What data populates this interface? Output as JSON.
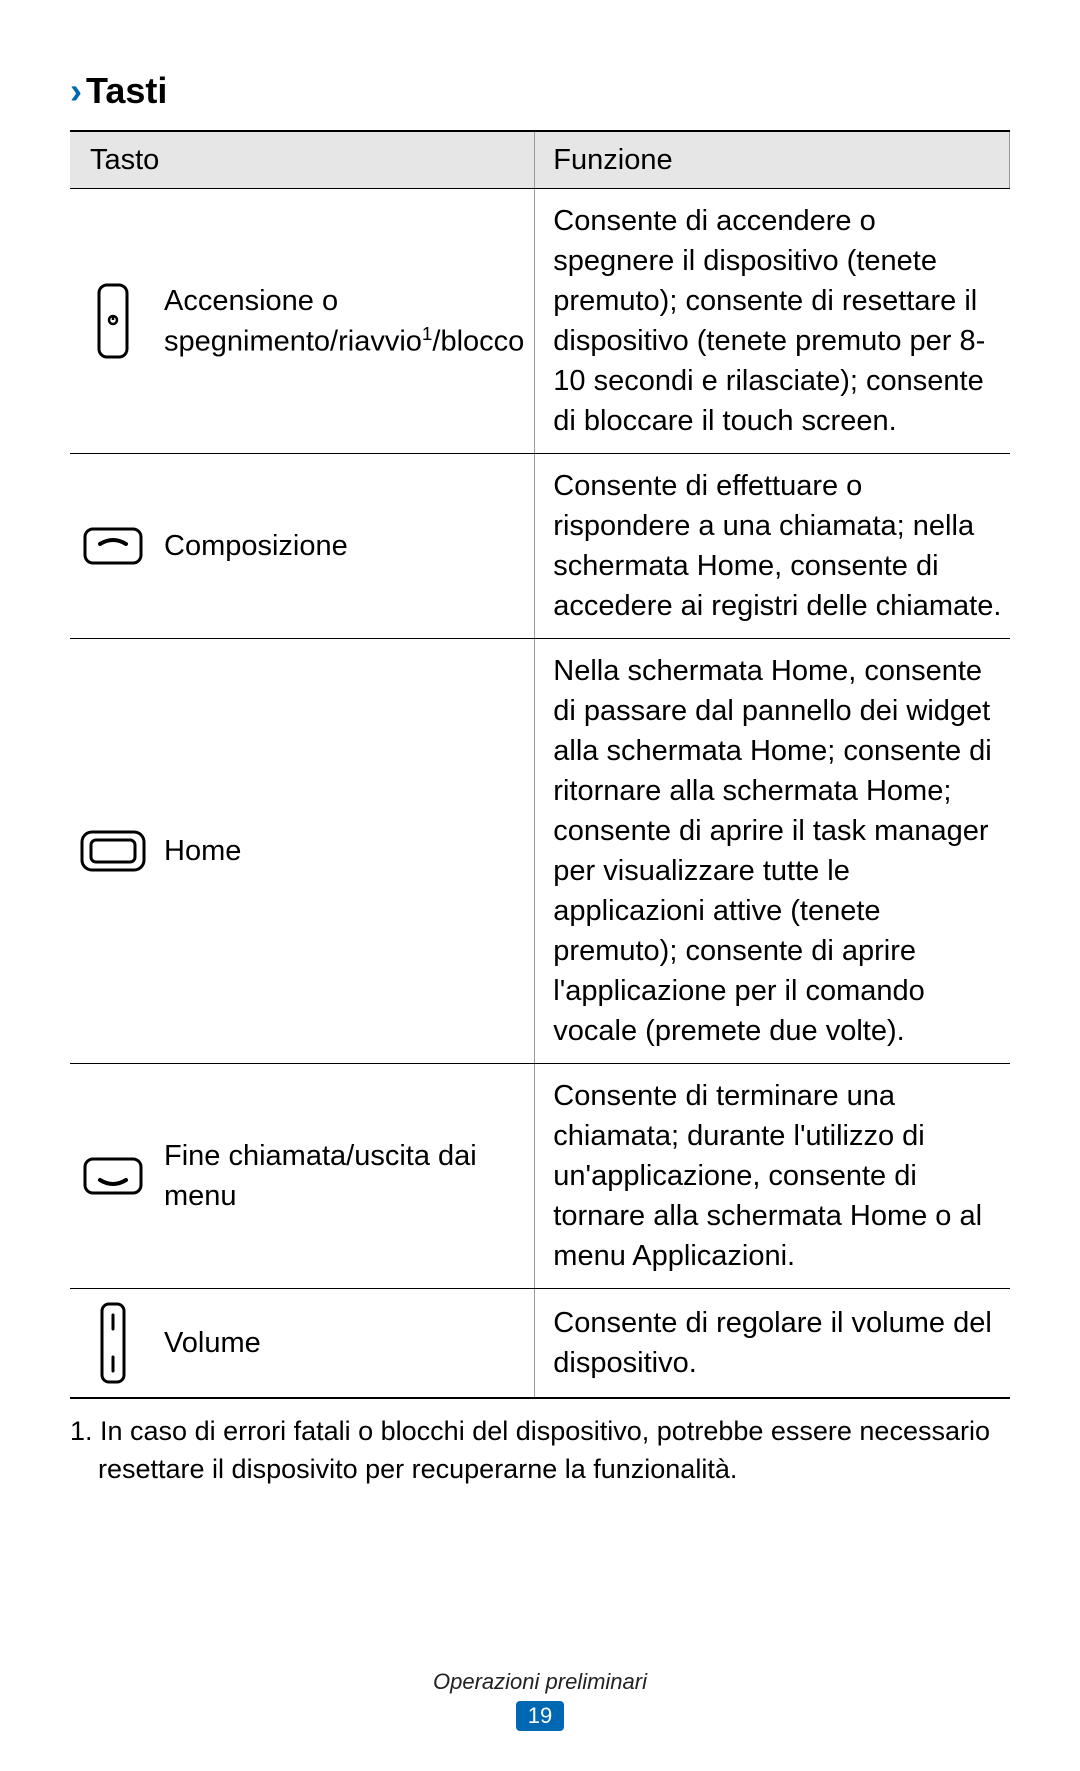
{
  "section_title": "Tasti",
  "table": {
    "headers": {
      "key": "Tasto",
      "function": "Funzione"
    },
    "rows": [
      {
        "icon": "power",
        "label_html": "Accensione o spegnimento/riavvio<sup>1</sup>/blocco",
        "function": "Consente di accendere o spegnere il dispositivo (tenete premuto); consente di resettare il dispositivo (tenete premuto per 8-10 secondi e rilasciate); consente di bloccare il touch screen."
      },
      {
        "icon": "call",
        "label_html": "Composizione",
        "function": "Consente di effettuare o rispondere a una chiamata; nella schermata Home, consente di accedere ai registri delle chiamate."
      },
      {
        "icon": "home",
        "label_html": "Home",
        "function": "Nella schermata Home, consente di passare dal pannello dei widget alla schermata Home; consente di ritornare alla schermata Home; consente di aprire il task manager per visualizzare tutte le applicazioni attive (tenete premuto); consente di aprire l'applicazione per il comando vocale (premete due volte)."
      },
      {
        "icon": "endcall",
        "label_html": "Fine chiamata/uscita dai menu",
        "function": "Consente di terminare una chiamata; durante l'utilizzo di un'applicazione, consente di tornare alla schermata Home o al menu Applicazioni."
      },
      {
        "icon": "volume",
        "label_html": "Volume",
        "function": "Consente di regolare il volume del dispositivo."
      }
    ]
  },
  "footnote": "1. In caso di errori fatali o blocchi del dispositivo, potrebbe essere necessario resettare il disposivito per recuperarne la funzionalità.",
  "footer_text": "Operazioni preliminari",
  "page_number": "19",
  "colors": {
    "accent": "#0068b3",
    "header_bg": "#e6e6e6",
    "border": "#000000",
    "inner_border": "#999999"
  }
}
